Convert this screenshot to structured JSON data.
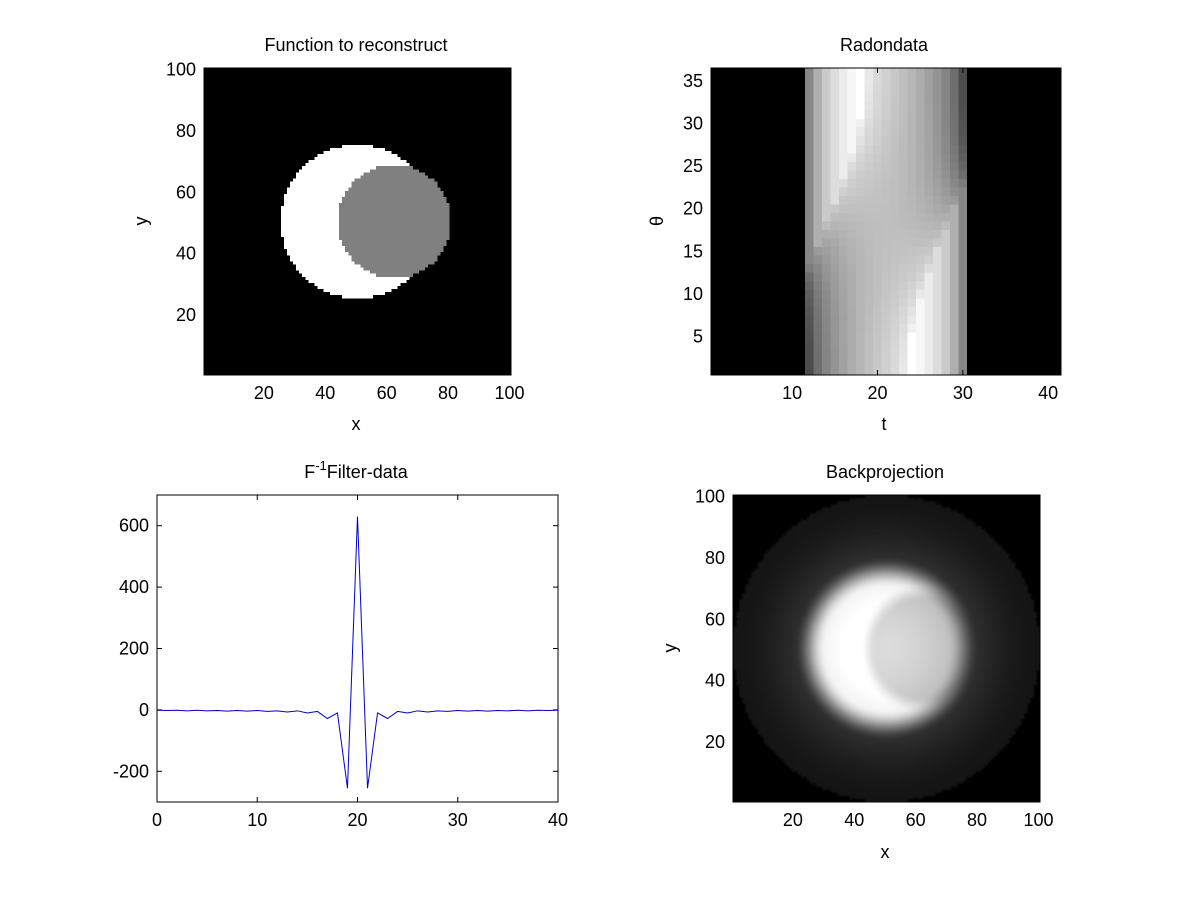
{
  "figure_background": "#ffffff",
  "chart_data": [
    {
      "type": "heatmap",
      "title": "Function to reconstruct",
      "xlabel": "x",
      "ylabel": "y",
      "xlim": [
        0.5,
        100.5
      ],
      "ylim": [
        100.5,
        0.5
      ],
      "xticks": [
        20,
        40,
        60,
        80,
        100
      ],
      "yticks": [
        20,
        40,
        60,
        80,
        100
      ],
      "colormap": "gray",
      "background_value": 0,
      "shapes": [
        {
          "kind": "disk",
          "center": [
            50.5,
            50.5
          ],
          "radius": 25,
          "value": 1.0
        },
        {
          "kind": "disk",
          "center": [
            62.5,
            50.5
          ],
          "radius": 18.5,
          "value": 0.5
        }
      ]
    },
    {
      "type": "heatmap",
      "title": "Radondata",
      "xlabel": "t",
      "ylabel": "θ",
      "xlim": [
        0.5,
        41.5
      ],
      "ylim": [
        36.5,
        0.5
      ],
      "xticks": [
        10,
        20,
        30,
        40
      ],
      "yticks": [
        5,
        10,
        15,
        20,
        25,
        30,
        35
      ],
      "colormap": "gray",
      "nonzero_t_range": [
        12,
        30
      ],
      "angles": 36
    },
    {
      "type": "line",
      "title_main": "F",
      "title_sup": "-1",
      "title_rest": "Filter-data",
      "xlim": [
        0,
        40
      ],
      "ylim": [
        -300,
        700
      ],
      "xticks": [
        0,
        10,
        20,
        30,
        40
      ],
      "yticks": [
        -200,
        0,
        200,
        400,
        600
      ],
      "line_color": "#0000cc",
      "series": [
        {
          "name": "filter",
          "x": [
            1,
            2,
            3,
            4,
            5,
            6,
            7,
            8,
            9,
            10,
            11,
            12,
            13,
            14,
            15,
            16,
            17,
            18,
            19,
            20,
            21,
            22,
            23,
            24,
            25,
            26,
            27,
            28,
            29,
            30,
            31,
            32,
            33,
            34,
            35,
            36,
            37,
            38,
            39,
            40,
            41
          ],
          "y": [
            -1,
            -2,
            -1,
            -3,
            -1,
            -3,
            -2,
            -4,
            -2,
            -4,
            -2,
            -5,
            -3,
            -7,
            -3,
            -10,
            -5,
            -28,
            -10,
            -255,
            630,
            -255,
            -10,
            -28,
            -5,
            -10,
            -3,
            -7,
            -3,
            -5,
            -2,
            -4,
            -2,
            -4,
            -2,
            -3,
            -1,
            -3,
            -1,
            -2,
            -1
          ]
        }
      ]
    },
    {
      "type": "heatmap",
      "title": "Backprojection",
      "xlabel": "x",
      "ylabel": "y",
      "xlim": [
        0.5,
        100.5
      ],
      "ylim": [
        100.5,
        0.5
      ],
      "xticks": [
        20,
        40,
        60,
        80,
        100
      ],
      "yticks": [
        20,
        40,
        60,
        80,
        100
      ],
      "colormap": "gray",
      "outer_radius": 50,
      "shapes": [
        {
          "kind": "blurred-disk",
          "center": [
            50.5,
            50.5
          ],
          "radius": 25,
          "value": 1.0
        },
        {
          "kind": "blurred-disk",
          "center": [
            62.5,
            50.5
          ],
          "radius": 18.5,
          "value": 0.85
        }
      ]
    }
  ]
}
